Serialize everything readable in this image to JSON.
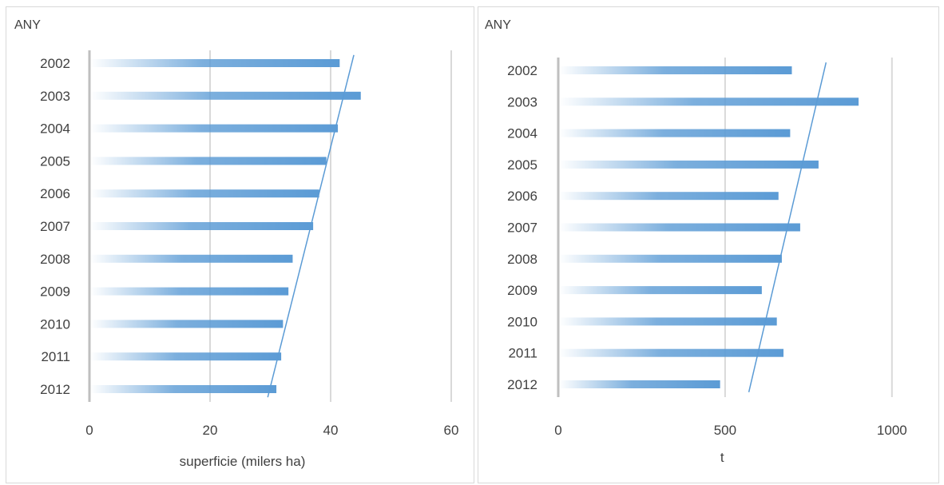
{
  "chart_data": [
    {
      "type": "bar",
      "orientation": "horizontal",
      "ylabel": "ANY",
      "xlabel": "superficie (milers ha)",
      "categories": [
        "2002",
        "2003",
        "2004",
        "2005",
        "2006",
        "2007",
        "2008",
        "2009",
        "2010",
        "2011",
        "2012"
      ],
      "values": [
        41.5,
        45,
        41.2,
        39.3,
        38.1,
        37.1,
        33.7,
        33,
        32.1,
        31.8,
        31
      ],
      "xlim": [
        0,
        60
      ],
      "xticks": [
        0,
        20,
        40,
        60
      ],
      "grid": "vertical",
      "bar_color": "#5b9bd5",
      "trendline": {
        "type": "linear",
        "color": "#5b9bd5"
      }
    },
    {
      "type": "bar",
      "orientation": "horizontal",
      "ylabel": "ANY",
      "xlabel": "t",
      "categories": [
        "2002",
        "2003",
        "2004",
        "2005",
        "2006",
        "2007",
        "2008",
        "2009",
        "2010",
        "2011",
        "2012"
      ],
      "values": [
        700,
        900,
        695,
        780,
        660,
        725,
        670,
        610,
        655,
        675,
        485
      ],
      "xlim": [
        0,
        1150
      ],
      "xticks": [
        0,
        500,
        1000
      ],
      "grid": "vertical",
      "bar_color": "#5b9bd5",
      "trendline": {
        "type": "linear",
        "color": "#5b9bd5"
      }
    }
  ]
}
